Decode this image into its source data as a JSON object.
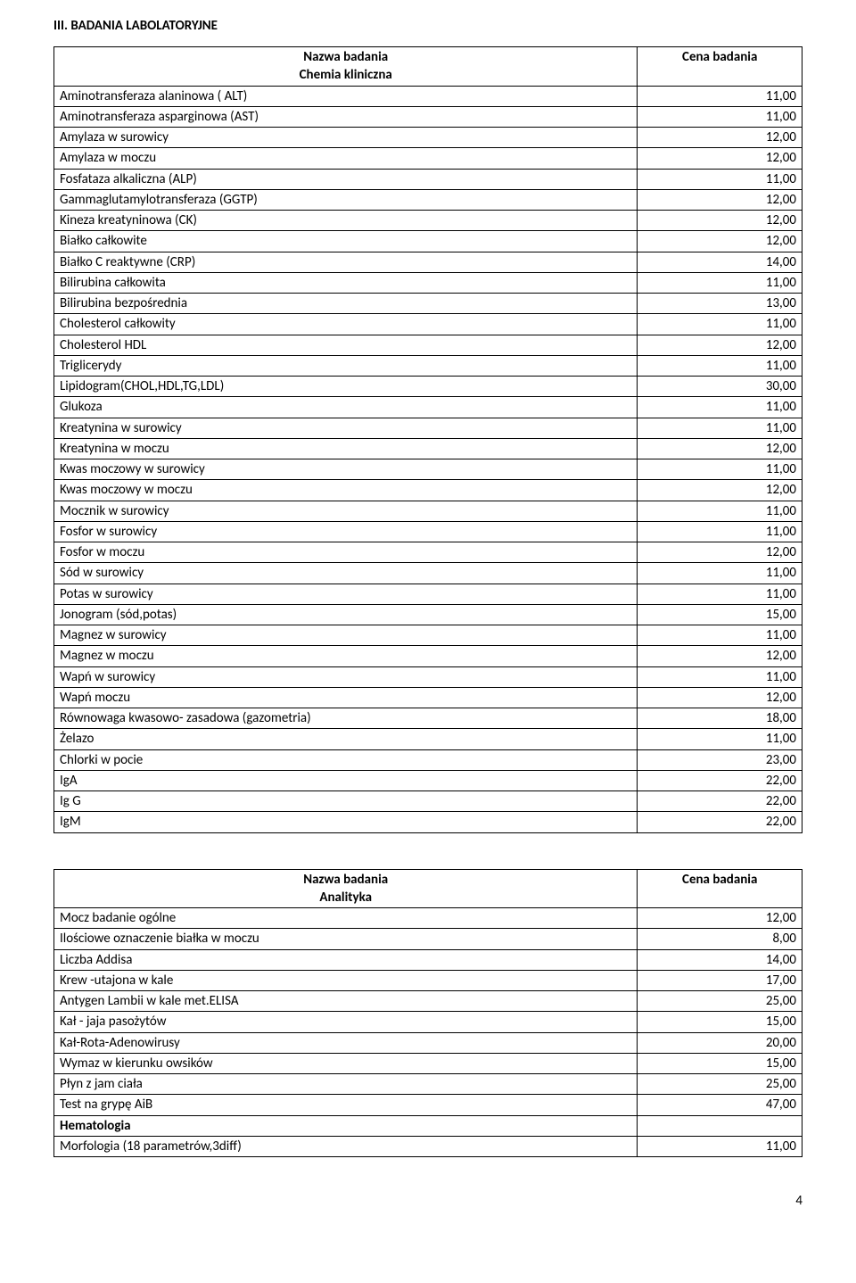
{
  "section_title": "III. BADANIA LABOLATORYJNE",
  "table1": {
    "header_name": "Nazwa badania",
    "header_sub": "Chemia kliniczna",
    "header_price": "Cena badania",
    "rows": [
      {
        "name": "Aminotransferaza alaninowa ( ALT)",
        "price": "11,00"
      },
      {
        "name": "Aminotransferaza asparginowa (AST)",
        "price": "11,00"
      },
      {
        "name": "Amylaza w surowicy",
        "price": "12,00"
      },
      {
        "name": "Amylaza w moczu",
        "price": "12,00"
      },
      {
        "name": "Fosfataza alkaliczna (ALP)",
        "price": "11,00"
      },
      {
        "name": "Gammaglutamylotransferaza (GGTP)",
        "price": "12,00"
      },
      {
        "name": "Kineza kreatyninowa (CK)",
        "price": "12,00"
      },
      {
        "name": "Białko całkowite",
        "price": "12,00"
      },
      {
        "name": "Białko C reaktywne (CRP)",
        "price": "14,00"
      },
      {
        "name": "Bilirubina całkowita",
        "price": "11,00"
      },
      {
        "name": "Bilirubina bezpośrednia",
        "price": "13,00"
      },
      {
        "name": "Cholesterol całkowity",
        "price": "11,00"
      },
      {
        "name": "Cholesterol HDL",
        "price": "12,00"
      },
      {
        "name": "Triglicerydy",
        "price": "11,00"
      },
      {
        "name": "Lipidogram(CHOL,HDL,TG,LDL)",
        "price": "30,00"
      },
      {
        "name": "Glukoza",
        "price": "11,00"
      },
      {
        "name": "Kreatynina w surowicy",
        "price": "11,00"
      },
      {
        "name": "Kreatynina w moczu",
        "price": "12,00"
      },
      {
        "name": "Kwas moczowy w surowicy",
        "price": "11,00"
      },
      {
        "name": "Kwas moczowy w moczu",
        "price": "12,00"
      },
      {
        "name": "Mocznik w surowicy",
        "price": "11,00"
      },
      {
        "name": "Fosfor w surowicy",
        "price": "11,00"
      },
      {
        "name": "Fosfor w moczu",
        "price": "12,00"
      },
      {
        "name": "Sód w surowicy",
        "price": "11,00"
      },
      {
        "name": "Potas w surowicy",
        "price": "11,00"
      },
      {
        "name": "Jonogram (sód,potas)",
        "price": "15,00"
      },
      {
        "name": "Magnez w surowicy",
        "price": "11,00"
      },
      {
        "name": "Magnez w moczu",
        "price": "12,00"
      },
      {
        "name": "Wapń w surowicy",
        "price": "11,00"
      },
      {
        "name": "Wapń  moczu",
        "price": "12,00"
      },
      {
        "name": "Równowaga kwasowo- zasadowa (gazometria)",
        "price": "18,00"
      },
      {
        "name": "Żelazo",
        "price": "11,00"
      },
      {
        "name": "Chlorki w pocie",
        "price": "23,00"
      },
      {
        "name": "IgA",
        "price": "22,00"
      },
      {
        "name": "Ig G",
        "price": "22,00"
      },
      {
        "name": "IgM",
        "price": "22,00"
      }
    ]
  },
  "table2": {
    "header_name": "Nazwa badania",
    "header_sub": "Analityka",
    "header_price": "Cena badania",
    "rows": [
      {
        "name": "Mocz badanie ogólne",
        "price": "12,00"
      },
      {
        "name": "Ilościowe oznaczenie białka w moczu",
        "price": "8,00"
      },
      {
        "name": "Liczba Addisa",
        "price": "14,00"
      },
      {
        "name": "Krew -utajona w kale",
        "price": "17,00"
      },
      {
        "name": "Antygen Lambii w kale met.ELISA",
        "price": "25,00"
      },
      {
        "name": "Kał - jaja pasożytów",
        "price": "15,00"
      },
      {
        "name": "Kał-Rota-Adenowirusy",
        "price": "20,00"
      },
      {
        "name": "Wymaz  w kierunku owsików",
        "price": "15,00"
      },
      {
        "name": "Płyn z jam ciała",
        "price": "25,00"
      },
      {
        "name": "Test na grypę AiB",
        "price": "47,00"
      },
      {
        "name": "Hematologia",
        "price": "",
        "bold": true
      },
      {
        "name": "Morfologia (18 parametrów,3diff)",
        "price": "11,00"
      }
    ]
  },
  "page_number": "4"
}
